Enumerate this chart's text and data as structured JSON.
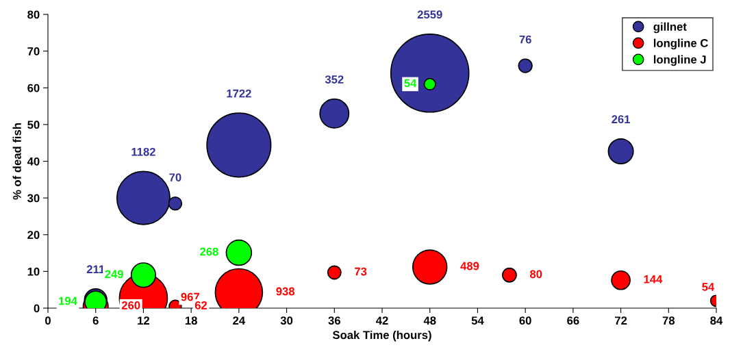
{
  "chart_data": {
    "type": "bubble",
    "xlabel": "Soak Time (hours)",
    "ylabel": "% of dead fish",
    "xlim": [
      0,
      84
    ],
    "xticks": [
      0,
      6,
      12,
      18,
      24,
      30,
      36,
      42,
      48,
      54,
      60,
      66,
      72,
      78,
      84
    ],
    "ylim": [
      0,
      80
    ],
    "yticks": [
      0,
      10,
      20,
      30,
      40,
      50,
      60,
      70,
      80
    ],
    "grid": false,
    "legend": "top right",
    "marker": "circle",
    "series": [
      {
        "name": "gillnet",
        "color": "#333399",
        "x": [
          6,
          12,
          16,
          24,
          36,
          48,
          60,
          72
        ],
        "values": [
          2.2,
          30.0,
          28.5,
          44.4,
          53.0,
          64.0,
          66.0,
          42.7
        ],
        "sizes": [
          211,
          1182,
          70,
          1722,
          352,
          2559,
          76,
          261
        ],
        "value_labels": [
          "211",
          "1182",
          "70",
          "1722",
          "352",
          "2559",
          "76",
          "261"
        ]
      },
      {
        "name": "longline C",
        "color": "#ff0000",
        "x": [
          6,
          12,
          16,
          24,
          36,
          48,
          58,
          72,
          84
        ],
        "values": [
          0.5,
          2.8,
          0.5,
          4.3,
          9.7,
          11.2,
          9.0,
          7.6,
          2.0
        ],
        "sizes": [
          260,
          967,
          62,
          938,
          73,
          489,
          80,
          144,
          54
        ],
        "value_labels": [
          "260",
          "967",
          "62",
          "938",
          "73",
          "489",
          "80",
          "144",
          "54"
        ]
      },
      {
        "name": "longline J",
        "color": "#00ff00",
        "x": [
          6,
          12,
          24,
          48
        ],
        "values": [
          1.7,
          9.0,
          15.1,
          61.0
        ],
        "sizes": [
          194,
          249,
          268,
          54
        ],
        "value_labels": [
          "194",
          "249",
          "268",
          "54"
        ]
      }
    ]
  }
}
